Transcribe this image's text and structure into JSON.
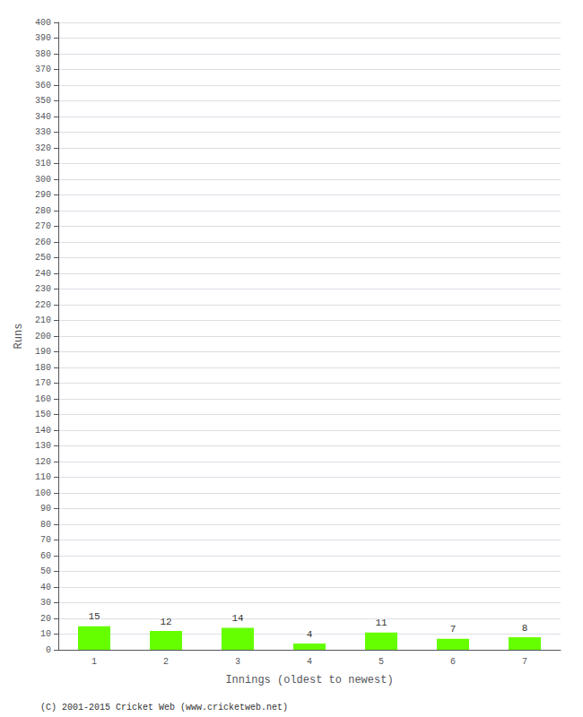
{
  "chart_data": {
    "type": "bar",
    "categories": [
      "1",
      "2",
      "3",
      "4",
      "5",
      "6",
      "7"
    ],
    "values": [
      15,
      12,
      14,
      4,
      11,
      7,
      8
    ],
    "color": "#66ff00",
    "xlabel": "Innings (oldest to newest)",
    "ylabel": "Runs",
    "ylim": [
      0,
      400
    ],
    "yticks": [
      0,
      10,
      20,
      30,
      40,
      50,
      60,
      70,
      80,
      90,
      100,
      110,
      120,
      130,
      140,
      150,
      160,
      170,
      180,
      190,
      200,
      210,
      220,
      230,
      240,
      250,
      260,
      270,
      280,
      290,
      300,
      310,
      320,
      330,
      340,
      350,
      360,
      370,
      380,
      390,
      400
    ],
    "grid": true,
    "data_labels": true,
    "annotations": [
      "(C) 2001-2015 Cricket Web (www.cricketweb.net)"
    ]
  }
}
